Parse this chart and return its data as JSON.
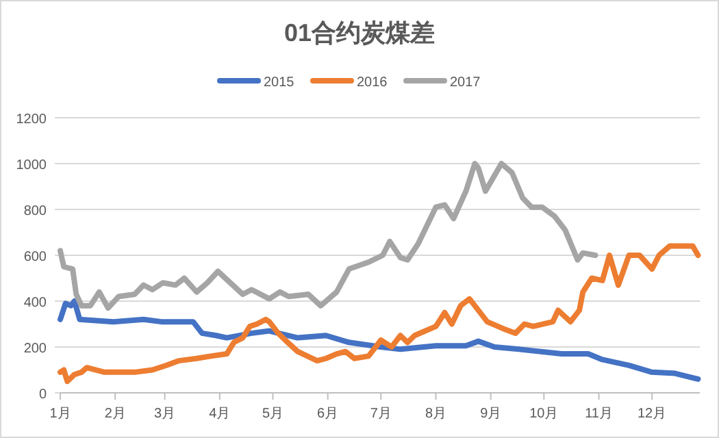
{
  "chart_data": {
    "type": "line",
    "title": "01合约炭煤差",
    "legend": "top",
    "grid": "y",
    "line_style": "solid",
    "marker": "none",
    "xlim": [
      "--01-01",
      "--12-28"
    ],
    "xticks": [
      {
        "value": "--01-01",
        "label": "1月"
      },
      {
        "value": "--02-01",
        "label": "2月"
      },
      {
        "value": "--03-01",
        "label": "3月"
      },
      {
        "value": "--04-01",
        "label": "4月"
      },
      {
        "value": "--05-01",
        "label": "5月"
      },
      {
        "value": "--06-01",
        "label": "6月"
      },
      {
        "value": "--07-01",
        "label": "7月"
      },
      {
        "value": "--08-01",
        "label": "8月"
      },
      {
        "value": "--09-01",
        "label": "9月"
      },
      {
        "value": "--10-01",
        "label": "10月"
      },
      {
        "value": "--11-01",
        "label": "11月"
      },
      {
        "value": "--12-01",
        "label": "12月"
      }
    ],
    "ylim": [
      0,
      1200
    ],
    "yticks": [
      0,
      200,
      400,
      600,
      800,
      1000,
      1200
    ],
    "series": [
      {
        "name": "2015",
        "color": "#4472c4",
        "x": [
          "--01-01",
          "--01-04",
          "--01-07",
          "--01-09",
          "--01-12",
          "--01-31",
          "--02-17",
          "--02-27",
          "--03-17",
          "--03-22",
          "--03-30",
          "--04-05",
          "--04-19",
          "--04-29",
          "--05-15",
          "--05-31",
          "--06-13",
          "--07-01",
          "--07-12",
          "--08-01",
          "--08-18",
          "--08-25",
          "--09-03",
          "--09-17",
          "--10-11",
          "--10-26",
          "--11-03",
          "--11-18",
          "--12-01",
          "--12-14",
          "--12-27"
        ],
        "values": [
          320,
          390,
          380,
          400,
          320,
          310,
          320,
          310,
          310,
          260,
          250,
          240,
          260,
          270,
          240,
          250,
          220,
          200,
          190,
          205,
          205,
          225,
          200,
          190,
          170,
          170,
          145,
          120,
          90,
          85,
          60
        ]
      },
      {
        "name": "2016",
        "color": "#ed7d31",
        "x": [
          "--01-01",
          "--01-03",
          "--01-05",
          "--01-09",
          "--01-13",
          "--01-16",
          "--01-26",
          "--02-12",
          "--02-22",
          "--03-02",
          "--03-09",
          "--03-19",
          "--03-27",
          "--04-05",
          "--04-09",
          "--04-14",
          "--04-18",
          "--04-22",
          "--04-27",
          "--04-29",
          "--05-04",
          "--05-08",
          "--05-15",
          "--05-26",
          "--05-31",
          "--06-06",
          "--06-11",
          "--06-16",
          "--06-24",
          "--07-01",
          "--07-07",
          "--07-12",
          "--07-16",
          "--07-20",
          "--08-01",
          "--08-06",
          "--08-10",
          "--08-15",
          "--08-20",
          "--08-25",
          "--08-30",
          "--09-08",
          "--09-15",
          "--09-20",
          "--09-25",
          "--10-06",
          "--10-09",
          "--10-16",
          "--10-21",
          "--10-23",
          "--10-28",
          "--11-03",
          "--11-07",
          "--11-12",
          "--11-18",
          "--11-24",
          "--12-01",
          "--12-05",
          "--12-11",
          "--12-24",
          "--12-27"
        ],
        "values": [
          90,
          100,
          50,
          80,
          90,
          110,
          90,
          90,
          100,
          120,
          140,
          150,
          160,
          170,
          220,
          240,
          290,
          300,
          320,
          310,
          260,
          230,
          180,
          140,
          150,
          170,
          180,
          150,
          160,
          230,
          200,
          250,
          220,
          250,
          290,
          350,
          300,
          380,
          410,
          360,
          310,
          280,
          260,
          300,
          290,
          310,
          360,
          310,
          360,
          440,
          500,
          490,
          600,
          470,
          600,
          600,
          540,
          600,
          640,
          640,
          600
        ]
      },
      {
        "name": "2017",
        "color": "#a5a5a5",
        "x": [
          "--01-01",
          "--01-03",
          "--01-08",
          "--01-10",
          "--01-13",
          "--01-18",
          "--01-23",
          "--01-28",
          "--02-03",
          "--02-12",
          "--02-17",
          "--02-22",
          "--02-28",
          "--03-07",
          "--03-12",
          "--03-19",
          "--03-25",
          "--03-31",
          "--04-07",
          "--04-14",
          "--04-19",
          "--04-29",
          "--05-05",
          "--05-10",
          "--05-21",
          "--05-28",
          "--06-06",
          "--06-13",
          "--06-24",
          "--07-02",
          "--07-06",
          "--07-12",
          "--07-16",
          "--07-22",
          "--08-01",
          "--08-06",
          "--08-11",
          "--08-18",
          "--08-23",
          "--08-25",
          "--08-29",
          "--09-07",
          "--09-13",
          "--09-19",
          "--09-24",
          "--09-30",
          "--10-07",
          "--10-13",
          "--10-20",
          "--10-23",
          "--10-30"
        ],
        "values": [
          620,
          550,
          540,
          430,
          380,
          380,
          440,
          370,
          420,
          430,
          470,
          450,
          480,
          470,
          500,
          440,
          480,
          530,
          480,
          430,
          450,
          410,
          440,
          420,
          430,
          380,
          440,
          540,
          570,
          600,
          660,
          590,
          580,
          650,
          810,
          820,
          760,
          880,
          1000,
          980,
          880,
          1000,
          960,
          850,
          810,
          810,
          770,
          710,
          580,
          610,
          600
        ]
      }
    ]
  }
}
